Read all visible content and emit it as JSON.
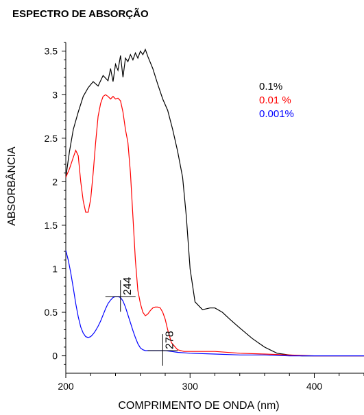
{
  "chart_data": {
    "type": "line",
    "title": "ESPECTRO DE ABSORÇÃO",
    "xlabel": "COMPRIMENTO DE ONDA (nm)",
    "ylabel": "ABSORBÂNCIA",
    "xlim": [
      200,
      440
    ],
    "ylim": [
      -0.2,
      3.6
    ],
    "xticks": [
      200,
      300,
      400
    ],
    "yticks": [
      0,
      0.5,
      1,
      1.5,
      2,
      2.5,
      3,
      3.5
    ],
    "ytick_labels": [
      "0",
      "0.5",
      "1",
      "1.5",
      "2",
      "2.5",
      "3",
      "3.5"
    ],
    "legend_position": "top-right",
    "grid": false,
    "series": [
      {
        "name": "0.1%",
        "color": "#000000",
        "x": [
          200,
          203,
          206,
          210,
          214,
          218,
          222,
          226,
          230,
          234,
          236,
          238,
          240,
          242,
          244,
          246,
          248,
          250,
          252,
          254,
          256,
          258,
          260,
          262,
          264,
          266,
          270,
          274,
          278,
          282,
          286,
          290,
          294,
          297,
          300,
          304,
          310,
          316,
          320,
          326,
          332,
          340,
          350,
          360,
          370,
          380,
          390,
          400,
          420,
          440
        ],
        "y": [
          2.05,
          2.35,
          2.6,
          2.8,
          2.98,
          3.08,
          3.15,
          3.1,
          3.22,
          3.16,
          3.3,
          3.15,
          3.35,
          3.28,
          3.45,
          3.2,
          3.42,
          3.38,
          3.46,
          3.4,
          3.48,
          3.42,
          3.5,
          3.46,
          3.52,
          3.44,
          3.3,
          3.12,
          2.95,
          2.82,
          2.6,
          2.35,
          2.05,
          1.6,
          1.0,
          0.62,
          0.53,
          0.55,
          0.55,
          0.5,
          0.42,
          0.32,
          0.2,
          0.1,
          0.03,
          0.01,
          0.0,
          0.0,
          0.0,
          0.0
        ]
      },
      {
        "name": "0.01 %",
        "color": "#ff0000",
        "x": [
          200,
          203,
          206,
          208,
          210,
          212,
          214,
          216,
          218,
          220,
          222,
          224,
          226,
          228,
          230,
          232,
          234,
          236,
          238,
          240,
          242,
          244,
          246,
          248,
          250,
          252,
          254,
          256,
          258,
          260,
          262,
          264,
          266,
          268,
          270,
          272,
          274,
          276,
          278,
          280,
          282,
          285,
          290,
          295,
          300,
          310,
          320,
          340,
          360,
          380,
          400,
          420,
          440
        ],
        "y": [
          2.05,
          2.15,
          2.28,
          2.36,
          2.3,
          2.0,
          1.78,
          1.65,
          1.65,
          1.8,
          2.1,
          2.45,
          2.75,
          2.9,
          2.98,
          3.0,
          2.98,
          2.95,
          2.98,
          2.95,
          2.96,
          2.93,
          2.8,
          2.6,
          2.45,
          2.1,
          1.6,
          1.1,
          0.75,
          0.6,
          0.5,
          0.46,
          0.48,
          0.52,
          0.55,
          0.56,
          0.56,
          0.55,
          0.5,
          0.42,
          0.3,
          0.15,
          0.07,
          0.05,
          0.05,
          0.05,
          0.05,
          0.03,
          0.02,
          0.01,
          0.0,
          0.0,
          0.0
        ]
      },
      {
        "name": "0.001%",
        "color": "#0000ff",
        "x": [
          200,
          202,
          204,
          206,
          208,
          210,
          212,
          214,
          216,
          218,
          220,
          222,
          224,
          226,
          228,
          230,
          232,
          234,
          236,
          238,
          240,
          242,
          244,
          246,
          248,
          250,
          252,
          254,
          256,
          258,
          260,
          262,
          264,
          266,
          268,
          270,
          275,
          280,
          285,
          290,
          300,
          320,
          340,
          360,
          380,
          400,
          420,
          440
        ],
        "y": [
          1.21,
          1.1,
          0.95,
          0.78,
          0.6,
          0.45,
          0.33,
          0.26,
          0.22,
          0.21,
          0.22,
          0.25,
          0.29,
          0.34,
          0.4,
          0.47,
          0.54,
          0.6,
          0.64,
          0.67,
          0.68,
          0.68,
          0.67,
          0.63,
          0.56,
          0.47,
          0.38,
          0.29,
          0.21,
          0.14,
          0.09,
          0.07,
          0.06,
          0.06,
          0.06,
          0.06,
          0.06,
          0.06,
          0.05,
          0.04,
          0.03,
          0.02,
          0.01,
          0.01,
          0.0,
          0.0,
          0.0,
          0.0
        ]
      }
    ],
    "annotations": [
      {
        "label": "244",
        "x": 244,
        "y": 0.68
      },
      {
        "label": "278",
        "x": 278,
        "y": 0.06
      }
    ]
  }
}
